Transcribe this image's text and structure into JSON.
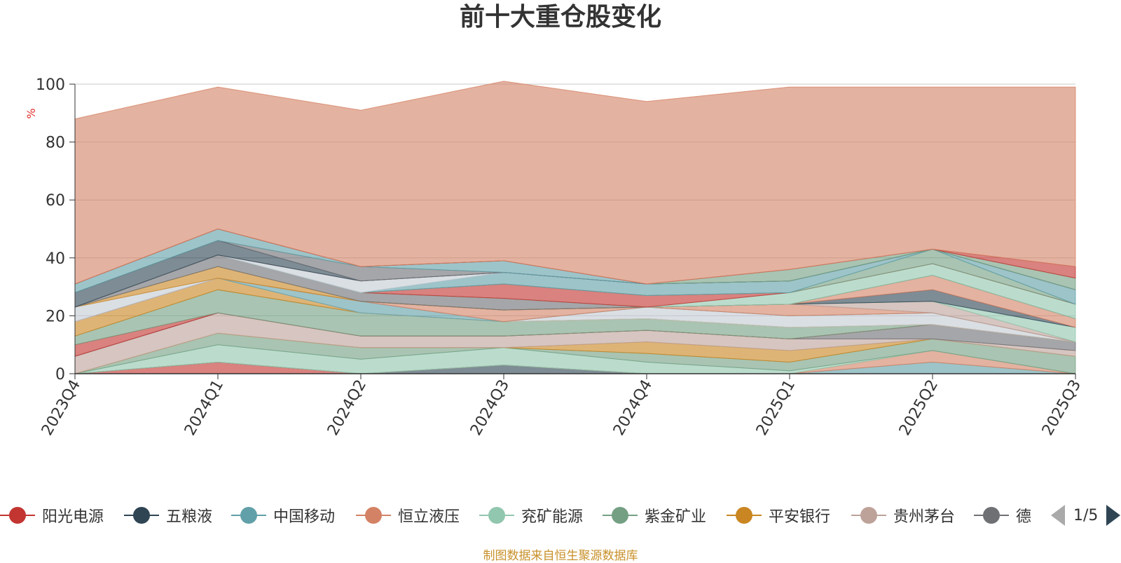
{
  "chart_data": {
    "type": "area",
    "title": "前十大重仓股变化",
    "ylabel": "%",
    "xlabel": "",
    "ylim": [
      0,
      100
    ],
    "yticks": [
      0,
      20,
      40,
      60,
      80,
      100
    ],
    "grid": true,
    "stacked": true,
    "categories": [
      "2023Q4",
      "2024Q1",
      "2024Q2",
      "2024Q3",
      "2024Q4",
      "2025Q1",
      "2025Q2",
      "2025Q3"
    ],
    "series": [
      {
        "name": "阳光电源",
        "color": "#c23531",
        "values": [
          0,
          4,
          0,
          0,
          0,
          0,
          0,
          0
        ]
      },
      {
        "name": "五粮液",
        "color": "#2f4554",
        "values": [
          0,
          0,
          0,
          3,
          0,
          0,
          0,
          0
        ]
      },
      {
        "name": "中国移动",
        "color": "#61a0a8",
        "values": [
          0,
          0,
          0,
          0,
          0,
          0,
          4,
          0
        ]
      },
      {
        "name": "恒立液压",
        "color": "#d48265",
        "values": [
          0,
          0,
          0,
          0,
          0,
          0,
          4,
          0
        ]
      },
      {
        "name": "兖矿能源",
        "color": "#91c7ae",
        "values": [
          0,
          6,
          5,
          6,
          4,
          1,
          0,
          0
        ]
      },
      {
        "name": "紫金矿业",
        "color": "#749f83",
        "values": [
          0,
          4,
          4,
          0,
          3,
          3,
          4,
          6
        ]
      },
      {
        "name": "平安银行",
        "color": "#ca8622",
        "values": [
          0,
          0,
          0,
          0,
          4,
          4,
          0,
          0
        ]
      },
      {
        "name": "贵州茅台",
        "color": "#bda29a",
        "values": [
          6,
          7,
          4,
          4,
          4,
          4,
          0,
          2
        ]
      },
      {
        "name": "德",
        "color": "#6e7074",
        "values": [
          0,
          0,
          0,
          0,
          0,
          0,
          5,
          3
        ]
      }
    ],
    "remainder": {
      "color": "#d48265",
      "values": [
        57,
        49,
        54,
        62,
        63,
        63,
        56,
        62
      ]
    },
    "upper_layers": [
      {
        "color": "#c23531",
        "values": [
          4,
          0,
          0,
          0,
          0,
          0,
          0,
          0
        ]
      },
      {
        "color": "#749f83",
        "values": [
          3,
          8,
          8,
          5,
          4,
          4,
          0,
          0
        ]
      },
      {
        "color": "#ca8622",
        "values": [
          5,
          4,
          0,
          0,
          0,
          0,
          0,
          0
        ]
      },
      {
        "color": "#c4ccd3",
        "values": [
          0,
          0,
          0,
          0,
          4,
          4,
          4,
          0
        ]
      },
      {
        "color": "#61a0a8",
        "values": [
          0,
          0,
          4,
          0,
          0,
          0,
          0,
          0
        ]
      },
      {
        "color": "#d48265",
        "values": [
          0,
          0,
          0,
          4,
          0,
          4,
          0,
          0
        ]
      },
      {
        "color": "#bda29a",
        "values": [
          0,
          0,
          0,
          0,
          0,
          0,
          4,
          0
        ]
      },
      {
        "color": "#91c7ae",
        "values": [
          0,
          0,
          0,
          0,
          0,
          0,
          0,
          5
        ]
      },
      {
        "color": "#2f4554",
        "values": [
          0,
          0,
          0,
          0,
          0,
          0,
          4,
          0
        ]
      },
      {
        "color": "#d48265",
        "values": [
          0,
          0,
          0,
          0,
          0,
          0,
          5,
          3
        ]
      },
      {
        "color": "#c4ccd3",
        "values": [
          5,
          0,
          0,
          0,
          0,
          0,
          0,
          0
        ]
      },
      {
        "color": "#ca8622",
        "values": [
          0,
          4,
          0,
          0,
          0,
          0,
          0,
          0
        ]
      },
      {
        "color": "#6e7074",
        "values": [
          0,
          4,
          3,
          4,
          0,
          0,
          0,
          0
        ]
      },
      {
        "color": "#91c7ae",
        "values": [
          0,
          0,
          0,
          0,
          0,
          4,
          4,
          5
        ]
      },
      {
        "color": "#c23531",
        "values": [
          0,
          0,
          0,
          5,
          4,
          0,
          0,
          0
        ]
      },
      {
        "color": "#749f83",
        "values": [
          0,
          0,
          0,
          0,
          0,
          0,
          5,
          0
        ]
      },
      {
        "color": "#61a0a8",
        "values": [
          0,
          0,
          0,
          4,
          4,
          4,
          0,
          5
        ]
      },
      {
        "color": "#c4ccd3",
        "values": [
          0,
          0,
          4,
          0,
          0,
          0,
          0,
          0
        ]
      },
      {
        "color": "#bda29a",
        "values": [
          0,
          0,
          0,
          0,
          0,
          0,
          0,
          0
        ]
      },
      {
        "color": "#2f4554",
        "values": [
          5,
          5,
          0,
          0,
          0,
          0,
          0,
          0
        ]
      },
      {
        "color": "#6e7074",
        "values": [
          0,
          0,
          5,
          0,
          0,
          0,
          0,
          0
        ]
      },
      {
        "color": "#61a0a8",
        "values": [
          3,
          4,
          0,
          4,
          0,
          0,
          0,
          0
        ]
      },
      {
        "color": "#749f83",
        "values": [
          0,
          0,
          0,
          0,
          0,
          4,
          0,
          4
        ]
      },
      {
        "color": "#c23531",
        "values": [
          0,
          0,
          0,
          0,
          0,
          0,
          0,
          4
        ]
      }
    ]
  },
  "legend": {
    "items": [
      {
        "label": "阳光电源",
        "color": "#c23531"
      },
      {
        "label": "五粮液",
        "color": "#2f4554"
      },
      {
        "label": "中国移动",
        "color": "#61a0a8"
      },
      {
        "label": "恒立液压",
        "color": "#d48265"
      },
      {
        "label": "兖矿能源",
        "color": "#91c7ae"
      },
      {
        "label": "紫金矿业",
        "color": "#749f83"
      },
      {
        "label": "平安银行",
        "color": "#ca8622"
      },
      {
        "label": "贵州茅台",
        "color": "#bda29a"
      },
      {
        "label": "德",
        "color": "#6e7074"
      }
    ],
    "page": "1/5",
    "prev_icon": "triangle-left-icon",
    "next_icon": "triangle-right-icon"
  },
  "source_note": "制图数据来自恒生聚源数据库"
}
